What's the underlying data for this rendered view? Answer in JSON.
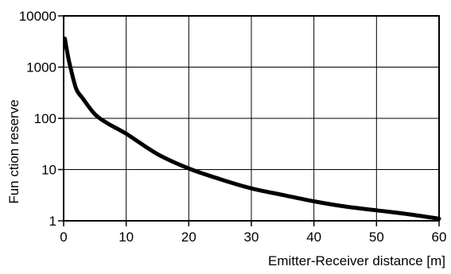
{
  "chart_data": {
    "type": "line",
    "title": "",
    "xlabel": "Emitter-Receiver distance [m]",
    "ylabel": "Fun ction reserve",
    "xlim": [
      0,
      60
    ],
    "ylim": [
      1,
      10000
    ],
    "yscale": "log",
    "grid": true,
    "x_ticks": [
      0,
      10,
      20,
      30,
      40,
      50,
      60
    ],
    "x_tick_labels": [
      "0",
      "10",
      "20",
      "30",
      "40",
      "50",
      "60"
    ],
    "y_ticks": [
      1,
      10,
      100,
      1000,
      10000
    ],
    "y_tick_labels": [
      "1",
      "10",
      "100",
      "1000",
      "10000"
    ],
    "series": [
      {
        "color": "#000000",
        "x": [
          0.2,
          0.5,
          1,
          2,
          3,
          5,
          7,
          10,
          15,
          20,
          25,
          30,
          35,
          40,
          45,
          50,
          55,
          60
        ],
        "y": [
          3600,
          2200,
          1100,
          380,
          250,
          120,
          80,
          50,
          20,
          10.5,
          6.5,
          4.3,
          3.2,
          2.4,
          1.9,
          1.6,
          1.35,
          1.1
        ]
      }
    ]
  }
}
